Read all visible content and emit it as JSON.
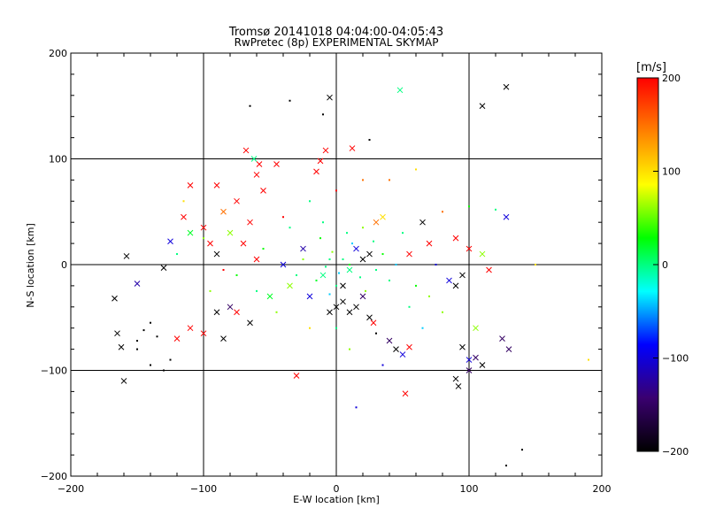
{
  "chart_data": {
    "type": "scatter",
    "title": "Tromsø 20141018 04:04:00-04:05:43",
    "subtitle": "RwPretec (8p) EXPERIMENTAL SKYMAP",
    "xlabel": "E-W location [km]",
    "ylabel": "N-S location [km]",
    "xlim": [
      -200,
      200
    ],
    "ylim": [
      -200,
      200
    ],
    "xticks": [
      -200,
      -100,
      0,
      100,
      200
    ],
    "yticks": [
      -200,
      -100,
      0,
      100,
      200
    ],
    "grid": true,
    "colorbar": {
      "label": "[m/s]",
      "range": [
        -200,
        200
      ],
      "ticks": [
        200,
        100,
        0,
        -100,
        -200
      ],
      "colors": [
        "#000000",
        "#3a0070",
        "#0000ff",
        "#00ffff",
        "#00ff00",
        "#ffff00",
        "#ff8000",
        "#ff0000"
      ]
    },
    "markers": {
      "cross": "×",
      "dot": "·"
    },
    "points": [
      {
        "x": -160,
        "y": -110,
        "v": -200,
        "m": "x"
      },
      {
        "x": -165,
        "y": -65,
        "v": -200,
        "m": "x"
      },
      {
        "x": -167,
        "y": -32,
        "v": -200,
        "m": "x"
      },
      {
        "x": -162,
        "y": -78,
        "v": -200,
        "m": "x"
      },
      {
        "x": -145,
        "y": -62,
        "v": -200,
        "m": "d"
      },
      {
        "x": -140,
        "y": -55,
        "v": -200,
        "m": "d"
      },
      {
        "x": -150,
        "y": -72,
        "v": -200,
        "m": "d"
      },
      {
        "x": -135,
        "y": -68,
        "v": -200,
        "m": "d"
      },
      {
        "x": -130,
        "y": -3,
        "v": -200,
        "m": "x"
      },
      {
        "x": -150,
        "y": -18,
        "v": -120,
        "m": "x"
      },
      {
        "x": -158,
        "y": 8,
        "v": -200,
        "m": "x"
      },
      {
        "x": -125,
        "y": 22,
        "v": -100,
        "m": "x"
      },
      {
        "x": -110,
        "y": 30,
        "v": 20,
        "m": "x"
      },
      {
        "x": -115,
        "y": 45,
        "v": 200,
        "m": "x"
      },
      {
        "x": -100,
        "y": 35,
        "v": 200,
        "m": "x"
      },
      {
        "x": -95,
        "y": 20,
        "v": 200,
        "m": "x"
      },
      {
        "x": -90,
        "y": 10,
        "v": -200,
        "m": "x"
      },
      {
        "x": -85,
        "y": 50,
        "v": 150,
        "m": "x"
      },
      {
        "x": -80,
        "y": 30,
        "v": 60,
        "m": "x"
      },
      {
        "x": -75,
        "y": 60,
        "v": 200,
        "m": "x"
      },
      {
        "x": -70,
        "y": 20,
        "v": 200,
        "m": "x"
      },
      {
        "x": -65,
        "y": 40,
        "v": 200,
        "m": "x"
      },
      {
        "x": -60,
        "y": 5,
        "v": 200,
        "m": "x"
      },
      {
        "x": -55,
        "y": 70,
        "v": 200,
        "m": "x"
      },
      {
        "x": -50,
        "y": -30,
        "v": 20,
        "m": "x"
      },
      {
        "x": -45,
        "y": 95,
        "v": 200,
        "m": "x"
      },
      {
        "x": -40,
        "y": 0,
        "v": -100,
        "m": "x"
      },
      {
        "x": -35,
        "y": -20,
        "v": 60,
        "m": "x"
      },
      {
        "x": -30,
        "y": -105,
        "v": 200,
        "m": "x"
      },
      {
        "x": -68,
        "y": 108,
        "v": 200,
        "m": "x"
      },
      {
        "x": -62,
        "y": 100,
        "v": 0,
        "m": "x"
      },
      {
        "x": -58,
        "y": 95,
        "v": 200,
        "m": "x"
      },
      {
        "x": -12,
        "y": 98,
        "v": 200,
        "m": "x"
      },
      {
        "x": -8,
        "y": 108,
        "v": 200,
        "m": "x"
      },
      {
        "x": -15,
        "y": 88,
        "v": 200,
        "m": "x"
      },
      {
        "x": 12,
        "y": 110,
        "v": 200,
        "m": "x"
      },
      {
        "x": -5,
        "y": 158,
        "v": -200,
        "m": "x"
      },
      {
        "x": 48,
        "y": 165,
        "v": 0,
        "m": "x"
      },
      {
        "x": 110,
        "y": 150,
        "v": -200,
        "m": "x"
      },
      {
        "x": 128,
        "y": 168,
        "v": -200,
        "m": "x"
      },
      {
        "x": 128,
        "y": 45,
        "v": -100,
        "m": "x"
      },
      {
        "x": 65,
        "y": 40,
        "v": -200,
        "m": "x"
      },
      {
        "x": 55,
        "y": 10,
        "v": 200,
        "m": "x"
      },
      {
        "x": 70,
        "y": 20,
        "v": 200,
        "m": "x"
      },
      {
        "x": 90,
        "y": 25,
        "v": 200,
        "m": "x"
      },
      {
        "x": 100,
        "y": 15,
        "v": 200,
        "m": "x"
      },
      {
        "x": 110,
        "y": 10,
        "v": 60,
        "m": "x"
      },
      {
        "x": 115,
        "y": -5,
        "v": 200,
        "m": "x"
      },
      {
        "x": 95,
        "y": -10,
        "v": -200,
        "m": "x"
      },
      {
        "x": 85,
        "y": -15,
        "v": -100,
        "m": "x"
      },
      {
        "x": 90,
        "y": -20,
        "v": -200,
        "m": "x"
      },
      {
        "x": 105,
        "y": -60,
        "v": 60,
        "m": "x"
      },
      {
        "x": 125,
        "y": -70,
        "v": -150,
        "m": "x"
      },
      {
        "x": 130,
        "y": -80,
        "v": -150,
        "m": "x"
      },
      {
        "x": 95,
        "y": -78,
        "v": -200,
        "m": "x"
      },
      {
        "x": 100,
        "y": -90,
        "v": -100,
        "m": "x"
      },
      {
        "x": 105,
        "y": -88,
        "v": -150,
        "m": "x"
      },
      {
        "x": 110,
        "y": -95,
        "v": -200,
        "m": "x"
      },
      {
        "x": 100,
        "y": -100,
        "v": -150,
        "m": "x"
      },
      {
        "x": 90,
        "y": -108,
        "v": -200,
        "m": "x"
      },
      {
        "x": 92,
        "y": -115,
        "v": -200,
        "m": "x"
      },
      {
        "x": 52,
        "y": -122,
        "v": 200,
        "m": "x"
      },
      {
        "x": 40,
        "y": -72,
        "v": -150,
        "m": "x"
      },
      {
        "x": 45,
        "y": -80,
        "v": -200,
        "m": "x"
      },
      {
        "x": 55,
        "y": -78,
        "v": 200,
        "m": "x"
      },
      {
        "x": 50,
        "y": -85,
        "v": -100,
        "m": "x"
      },
      {
        "x": 30,
        "y": 40,
        "v": 150,
        "m": "x"
      },
      {
        "x": 35,
        "y": 45,
        "v": 100,
        "m": "x"
      },
      {
        "x": 25,
        "y": 10,
        "v": -200,
        "m": "x"
      },
      {
        "x": 20,
        "y": 5,
        "v": -200,
        "m": "x"
      },
      {
        "x": 15,
        "y": 15,
        "v": -100,
        "m": "x"
      },
      {
        "x": 10,
        "y": -5,
        "v": 0,
        "m": "x"
      },
      {
        "x": 5,
        "y": -20,
        "v": -200,
        "m": "x"
      },
      {
        "x": 0,
        "y": -40,
        "v": -200,
        "m": "x"
      },
      {
        "x": -5,
        "y": -45,
        "v": -200,
        "m": "x"
      },
      {
        "x": 5,
        "y": -35,
        "v": -200,
        "m": "x"
      },
      {
        "x": 10,
        "y": -45,
        "v": -200,
        "m": "x"
      },
      {
        "x": 15,
        "y": -40,
        "v": -200,
        "m": "x"
      },
      {
        "x": 20,
        "y": -30,
        "v": -150,
        "m": "x"
      },
      {
        "x": -10,
        "y": -10,
        "v": 0,
        "m": "x"
      },
      {
        "x": -20,
        "y": -30,
        "v": -100,
        "m": "x"
      },
      {
        "x": -25,
        "y": 15,
        "v": -120,
        "m": "x"
      },
      {
        "x": 25,
        "y": -50,
        "v": -200,
        "m": "x"
      },
      {
        "x": 28,
        "y": -55,
        "v": 200,
        "m": "x"
      },
      {
        "x": -80,
        "y": -40,
        "v": -150,
        "m": "x"
      },
      {
        "x": -90,
        "y": -45,
        "v": -200,
        "m": "x"
      },
      {
        "x": -85,
        "y": -70,
        "v": -200,
        "m": "x"
      },
      {
        "x": -100,
        "y": -65,
        "v": 200,
        "m": "x"
      },
      {
        "x": -110,
        "y": -60,
        "v": 200,
        "m": "x"
      },
      {
        "x": -120,
        "y": -70,
        "v": 200,
        "m": "x"
      },
      {
        "x": -75,
        "y": -45,
        "v": 200,
        "m": "x"
      },
      {
        "x": -65,
        "y": -55,
        "v": -200,
        "m": "x"
      },
      {
        "x": -90,
        "y": 75,
        "v": 200,
        "m": "x"
      },
      {
        "x": -110,
        "y": 75,
        "v": 200,
        "m": "x"
      },
      {
        "x": -60,
        "y": 85,
        "v": 200,
        "m": "x"
      },
      {
        "x": -115,
        "y": 60,
        "v": 100,
        "m": "d"
      },
      {
        "x": -100,
        "y": 25,
        "v": 60,
        "m": "d"
      },
      {
        "x": -75,
        "y": -10,
        "v": 30,
        "m": "d"
      },
      {
        "x": -60,
        "y": -25,
        "v": 0,
        "m": "d"
      },
      {
        "x": -40,
        "y": 45,
        "v": 200,
        "m": "d"
      },
      {
        "x": -20,
        "y": 60,
        "v": 0,
        "m": "d"
      },
      {
        "x": 0,
        "y": 70,
        "v": 200,
        "m": "d"
      },
      {
        "x": 20,
        "y": 80,
        "v": 150,
        "m": "d"
      },
      {
        "x": 40,
        "y": 80,
        "v": 150,
        "m": "d"
      },
      {
        "x": 60,
        "y": 90,
        "v": 100,
        "m": "d"
      },
      {
        "x": 80,
        "y": 50,
        "v": 150,
        "m": "d"
      },
      {
        "x": 100,
        "y": 55,
        "v": 30,
        "m": "d"
      },
      {
        "x": 120,
        "y": 52,
        "v": 0,
        "m": "d"
      },
      {
        "x": 150,
        "y": 0,
        "v": 100,
        "m": "d"
      },
      {
        "x": 190,
        "y": -90,
        "v": 100,
        "m": "d"
      },
      {
        "x": 140,
        "y": -175,
        "v": -200,
        "m": "d"
      },
      {
        "x": 128,
        "y": -190,
        "v": -200,
        "m": "d"
      },
      {
        "x": 15,
        "y": -135,
        "v": -100,
        "m": "d"
      },
      {
        "x": -35,
        "y": 155,
        "v": -200,
        "m": "d"
      },
      {
        "x": -65,
        "y": 150,
        "v": -200,
        "m": "d"
      },
      {
        "x": -10,
        "y": 142,
        "v": -200,
        "m": "d"
      },
      {
        "x": 25,
        "y": 118,
        "v": -200,
        "m": "d"
      },
      {
        "x": -5,
        "y": 5,
        "v": 0,
        "m": "d"
      },
      {
        "x": 5,
        "y": 5,
        "v": 0,
        "m": "d"
      },
      {
        "x": 10,
        "y": 0,
        "v": 30,
        "m": "d"
      },
      {
        "x": -8,
        "y": -2,
        "v": 0,
        "m": "d"
      },
      {
        "x": 2,
        "y": -8,
        "v": -40,
        "m": "d"
      },
      {
        "x": -3,
        "y": 12,
        "v": 60,
        "m": "d"
      },
      {
        "x": 18,
        "y": -12,
        "v": 0,
        "m": "d"
      },
      {
        "x": -15,
        "y": -15,
        "v": 20,
        "m": "d"
      },
      {
        "x": 12,
        "y": 20,
        "v": -40,
        "m": "d"
      },
      {
        "x": 30,
        "y": -5,
        "v": 0,
        "m": "d"
      },
      {
        "x": -25,
        "y": 5,
        "v": 60,
        "m": "d"
      },
      {
        "x": 35,
        "y": 10,
        "v": 30,
        "m": "d"
      },
      {
        "x": 40,
        "y": -15,
        "v": 0,
        "m": "d"
      },
      {
        "x": 45,
        "y": 0,
        "v": -40,
        "m": "d"
      },
      {
        "x": -30,
        "y": -10,
        "v": 0,
        "m": "d"
      },
      {
        "x": 8,
        "y": 30,
        "v": 0,
        "m": "d"
      },
      {
        "x": -12,
        "y": 25,
        "v": 30,
        "m": "d"
      },
      {
        "x": 22,
        "y": -25,
        "v": 60,
        "m": "d"
      },
      {
        "x": 0,
        "y": -20,
        "v": 0,
        "m": "d"
      },
      {
        "x": -5,
        "y": -28,
        "v": -40,
        "m": "d"
      },
      {
        "x": 28,
        "y": 22,
        "v": 0,
        "m": "d"
      },
      {
        "x": 60,
        "y": -20,
        "v": 30,
        "m": "d"
      },
      {
        "x": 70,
        "y": -30,
        "v": 60,
        "m": "d"
      },
      {
        "x": -45,
        "y": -45,
        "v": 60,
        "m": "d"
      },
      {
        "x": -55,
        "y": 15,
        "v": 30,
        "m": "d"
      },
      {
        "x": -35,
        "y": 35,
        "v": 0,
        "m": "d"
      },
      {
        "x": 50,
        "y": 30,
        "v": 0,
        "m": "d"
      },
      {
        "x": 55,
        "y": -40,
        "v": 0,
        "m": "d"
      },
      {
        "x": -20,
        "y": -60,
        "v": 100,
        "m": "d"
      },
      {
        "x": 30,
        "y": -65,
        "v": -200,
        "m": "d"
      },
      {
        "x": 0,
        "y": -60,
        "v": 0,
        "m": "d"
      },
      {
        "x": -130,
        "y": -100,
        "v": -200,
        "m": "d"
      },
      {
        "x": -150,
        "y": -80,
        "v": -200,
        "m": "d"
      },
      {
        "x": -140,
        "y": -95,
        "v": -200,
        "m": "d"
      },
      {
        "x": -125,
        "y": -90,
        "v": -200,
        "m": "d"
      },
      {
        "x": -95,
        "y": -25,
        "v": 60,
        "m": "d"
      },
      {
        "x": -85,
        "y": -5,
        "v": 200,
        "m": "d"
      },
      {
        "x": -120,
        "y": 10,
        "v": 0,
        "m": "d"
      },
      {
        "x": 75,
        "y": 0,
        "v": -100,
        "m": "d"
      },
      {
        "x": 80,
        "y": -45,
        "v": 60,
        "m": "d"
      },
      {
        "x": 65,
        "y": -60,
        "v": -40,
        "m": "d"
      },
      {
        "x": 35,
        "y": -95,
        "v": -100,
        "m": "d"
      },
      {
        "x": 10,
        "y": -80,
        "v": 60,
        "m": "d"
      },
      {
        "x": 20,
        "y": 35,
        "v": 60,
        "m": "d"
      },
      {
        "x": -10,
        "y": 40,
        "v": 0,
        "m": "d"
      }
    ]
  }
}
